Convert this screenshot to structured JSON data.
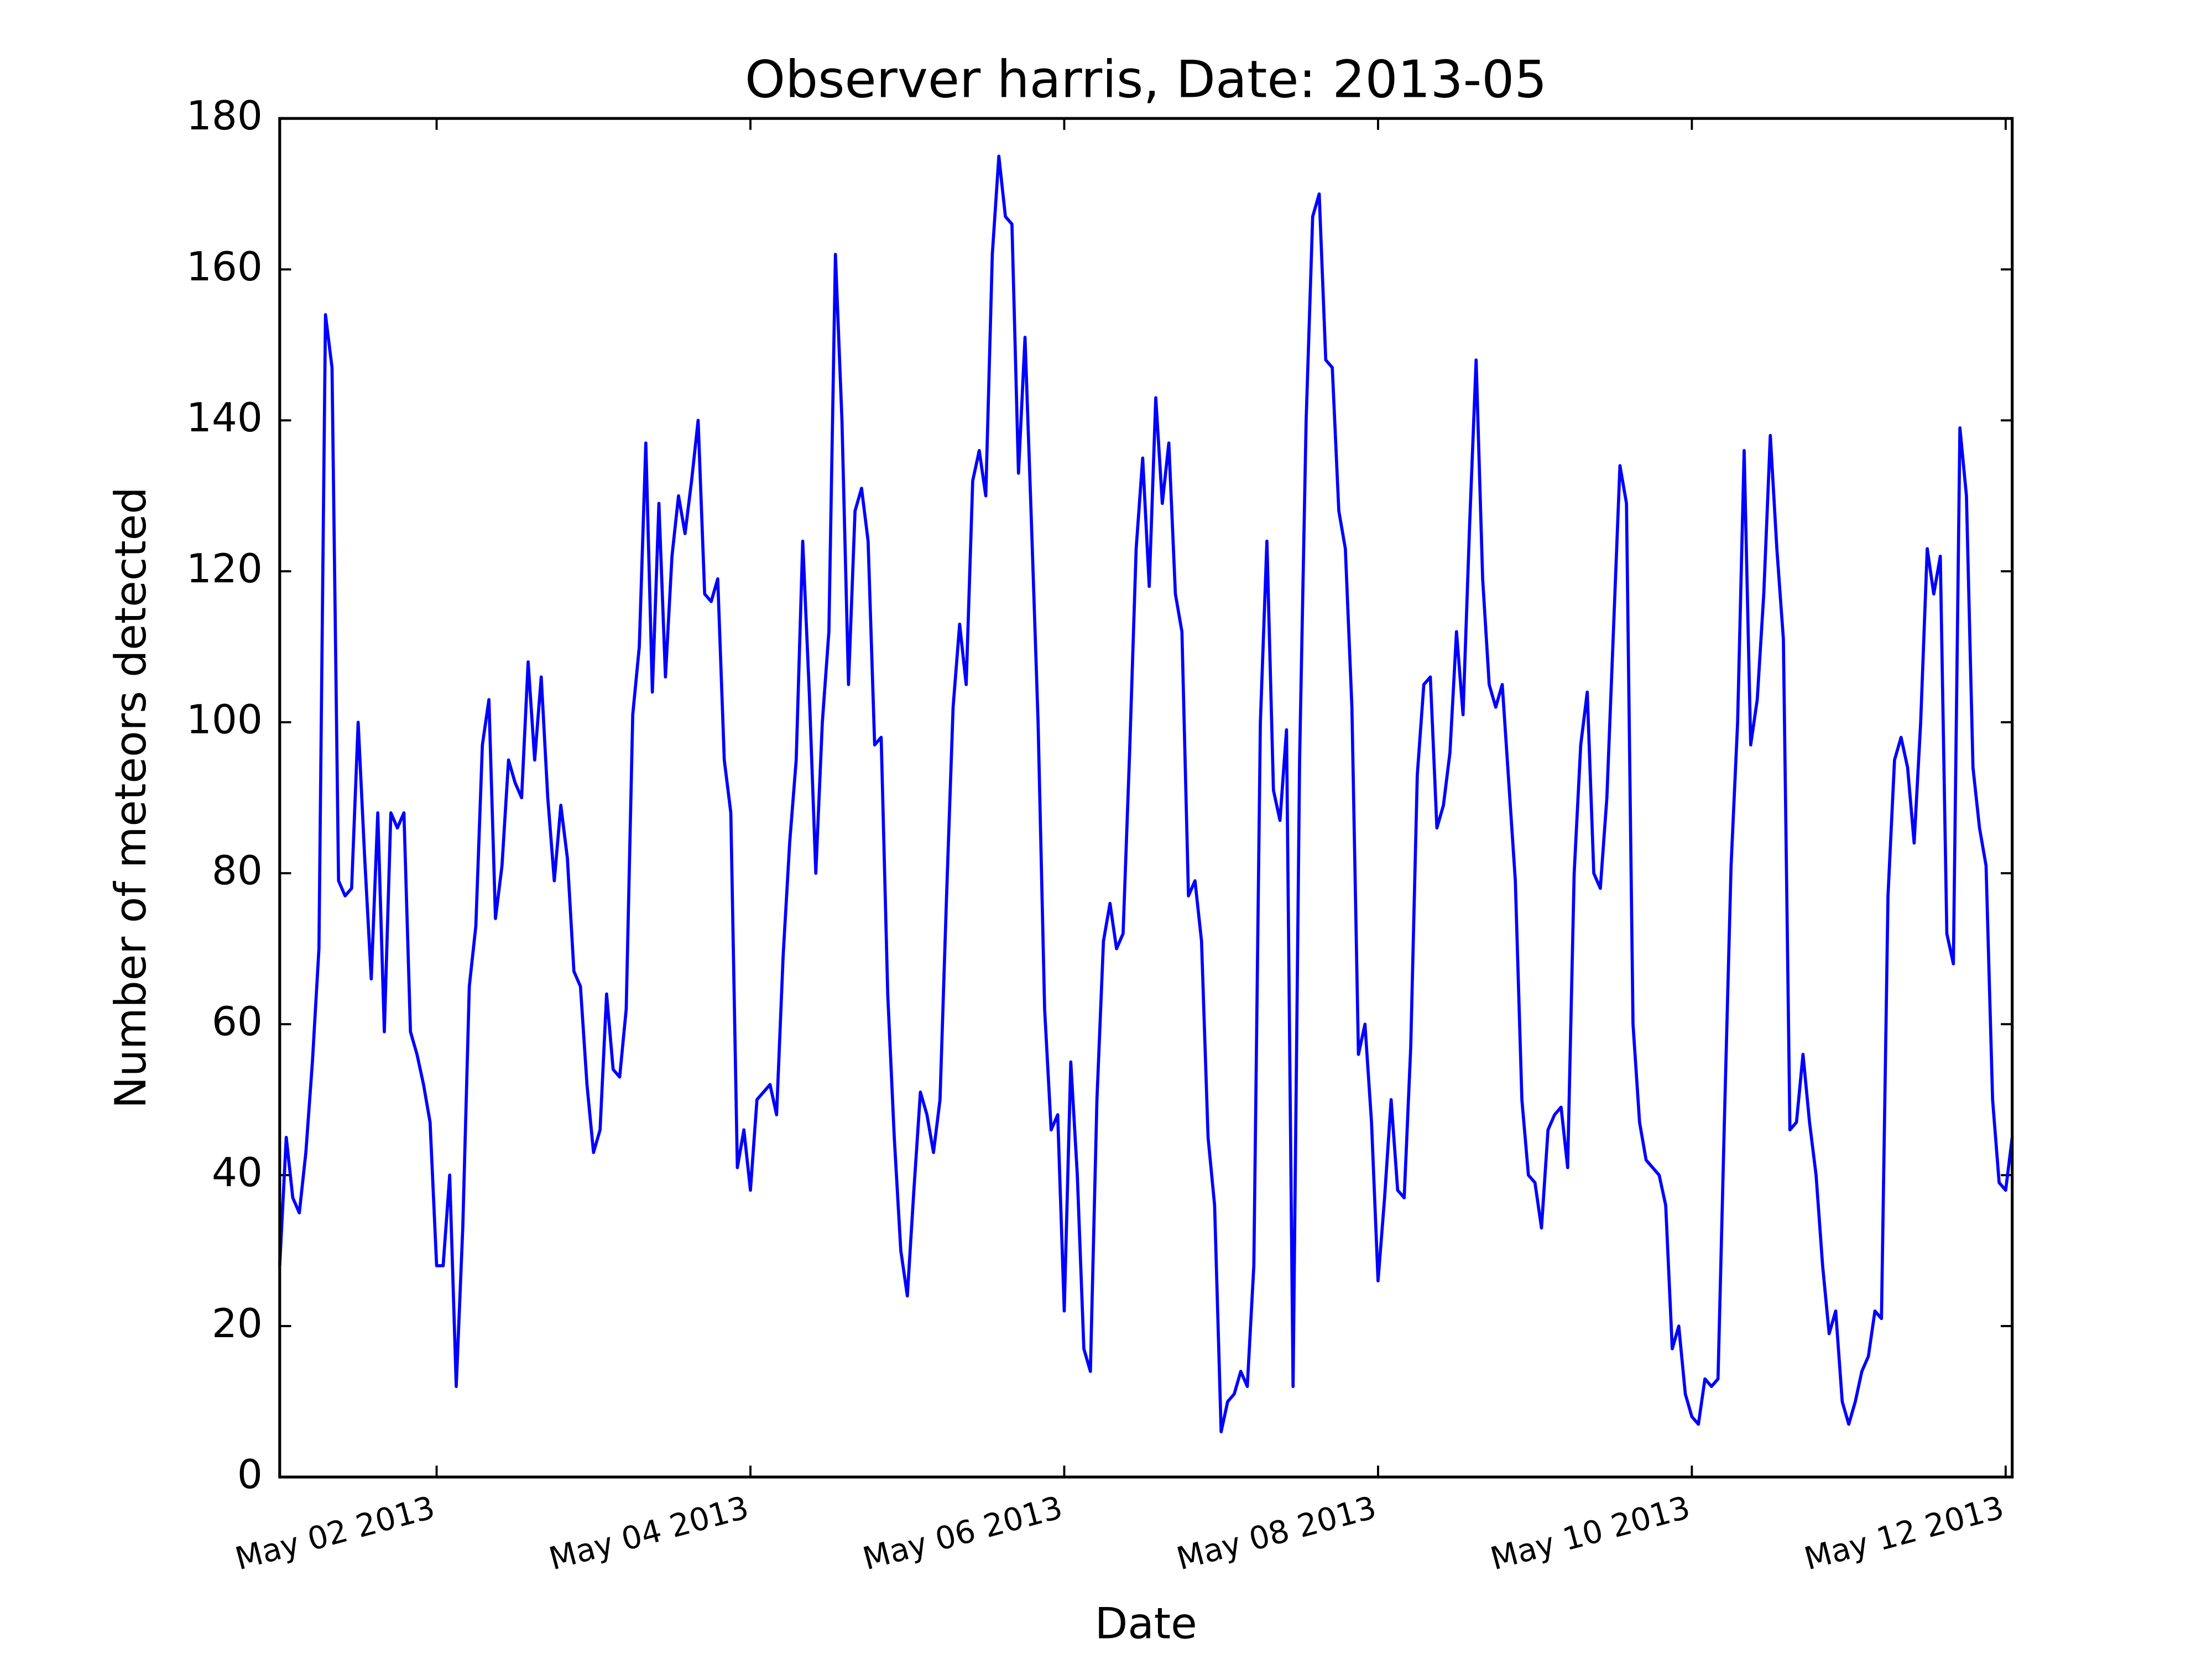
{
  "chart_data": {
    "type": "line",
    "title": "Observer harris, Date: 2013-05",
    "xlabel": "Date",
    "ylabel": "Number of meteors detected",
    "color": "#0000ff",
    "x": [
      "2013-05-01T00:00",
      "2013-05-01T01:00",
      "2013-05-01T02:00",
      "2013-05-01T03:00",
      "2013-05-01T04:00",
      "2013-05-01T05:00",
      "2013-05-01T06:00",
      "2013-05-01T07:00",
      "2013-05-01T08:00",
      "2013-05-01T09:00",
      "2013-05-01T10:00",
      "2013-05-01T11:00",
      "2013-05-01T12:00",
      "2013-05-01T13:00",
      "2013-05-01T14:00",
      "2013-05-01T15:00",
      "2013-05-01T16:00",
      "2013-05-01T17:00",
      "2013-05-01T18:00",
      "2013-05-01T19:00",
      "2013-05-01T20:00",
      "2013-05-01T21:00",
      "2013-05-01T22:00",
      "2013-05-01T23:00",
      "2013-05-02T00:00",
      "2013-05-02T01:00",
      "2013-05-02T02:00",
      "2013-05-02T03:00",
      "2013-05-02T04:00",
      "2013-05-02T05:00",
      "2013-05-02T06:00",
      "2013-05-02T07:00",
      "2013-05-02T08:00",
      "2013-05-02T09:00",
      "2013-05-02T10:00",
      "2013-05-02T11:00",
      "2013-05-02T12:00",
      "2013-05-02T13:00",
      "2013-05-02T14:00",
      "2013-05-02T15:00",
      "2013-05-02T16:00",
      "2013-05-02T17:00",
      "2013-05-02T18:00",
      "2013-05-02T19:00",
      "2013-05-02T20:00",
      "2013-05-02T21:00",
      "2013-05-02T22:00",
      "2013-05-02T23:00",
      "2013-05-03T00:00",
      "2013-05-03T01:00",
      "2013-05-03T02:00",
      "2013-05-03T03:00",
      "2013-05-03T04:00",
      "2013-05-03T05:00",
      "2013-05-03T06:00",
      "2013-05-03T07:00",
      "2013-05-03T08:00",
      "2013-05-03T09:00",
      "2013-05-03T10:00",
      "2013-05-03T11:00",
      "2013-05-03T12:00",
      "2013-05-03T13:00",
      "2013-05-03T14:00",
      "2013-05-03T15:00",
      "2013-05-03T16:00",
      "2013-05-03T17:00",
      "2013-05-03T18:00",
      "2013-05-03T19:00",
      "2013-05-03T20:00",
      "2013-05-03T21:00",
      "2013-05-03T22:00",
      "2013-05-03T23:00",
      "2013-05-04T00:00",
      "2013-05-04T01:00",
      "2013-05-04T02:00",
      "2013-05-04T03:00",
      "2013-05-04T04:00",
      "2013-05-04T05:00",
      "2013-05-04T06:00",
      "2013-05-04T07:00",
      "2013-05-04T08:00",
      "2013-05-04T09:00",
      "2013-05-04T10:00",
      "2013-05-04T11:00",
      "2013-05-04T12:00",
      "2013-05-04T13:00",
      "2013-05-04T14:00",
      "2013-05-04T15:00",
      "2013-05-04T16:00",
      "2013-05-04T17:00",
      "2013-05-04T18:00",
      "2013-05-04T19:00",
      "2013-05-04T20:00",
      "2013-05-04T21:00",
      "2013-05-04T22:00",
      "2013-05-04T23:00",
      "2013-05-05T00:00",
      "2013-05-05T01:00",
      "2013-05-05T02:00",
      "2013-05-05T03:00",
      "2013-05-05T04:00",
      "2013-05-05T05:00",
      "2013-05-05T06:00",
      "2013-05-05T07:00",
      "2013-05-05T08:00",
      "2013-05-05T09:00",
      "2013-05-05T10:00",
      "2013-05-05T11:00",
      "2013-05-05T12:00",
      "2013-05-05T13:00",
      "2013-05-05T14:00",
      "2013-05-05T15:00",
      "2013-05-05T16:00",
      "2013-05-05T17:00",
      "2013-05-05T18:00",
      "2013-05-05T19:00",
      "2013-05-05T20:00",
      "2013-05-05T21:00",
      "2013-05-05T22:00",
      "2013-05-05T23:00",
      "2013-05-06T00:00",
      "2013-05-06T01:00",
      "2013-05-06T02:00",
      "2013-05-06T03:00",
      "2013-05-06T04:00",
      "2013-05-06T05:00",
      "2013-05-06T06:00",
      "2013-05-06T07:00",
      "2013-05-06T08:00",
      "2013-05-06T09:00",
      "2013-05-06T10:00",
      "2013-05-06T11:00",
      "2013-05-06T12:00",
      "2013-05-06T13:00",
      "2013-05-06T14:00",
      "2013-05-06T15:00",
      "2013-05-06T16:00",
      "2013-05-06T17:00",
      "2013-05-06T18:00",
      "2013-05-06T19:00",
      "2013-05-06T20:00",
      "2013-05-06T21:00",
      "2013-05-06T22:00",
      "2013-05-06T23:00",
      "2013-05-07T00:00",
      "2013-05-07T01:00",
      "2013-05-07T02:00",
      "2013-05-07T03:00",
      "2013-05-07T04:00",
      "2013-05-07T05:00",
      "2013-05-07T06:00",
      "2013-05-07T07:00",
      "2013-05-07T08:00",
      "2013-05-07T09:00",
      "2013-05-07T10:00",
      "2013-05-07T11:00",
      "2013-05-07T12:00",
      "2013-05-07T13:00",
      "2013-05-07T14:00",
      "2013-05-07T15:00",
      "2013-05-07T16:00",
      "2013-05-07T17:00",
      "2013-05-07T18:00",
      "2013-05-07T19:00",
      "2013-05-07T20:00",
      "2013-05-07T21:00",
      "2013-05-07T22:00",
      "2013-05-07T23:00",
      "2013-05-08T00:00",
      "2013-05-08T01:00",
      "2013-05-08T02:00",
      "2013-05-08T03:00",
      "2013-05-08T04:00",
      "2013-05-08T05:00",
      "2013-05-08T06:00",
      "2013-05-08T07:00",
      "2013-05-08T08:00",
      "2013-05-08T09:00",
      "2013-05-08T10:00",
      "2013-05-08T11:00",
      "2013-05-08T12:00",
      "2013-05-08T13:00",
      "2013-05-08T14:00",
      "2013-05-08T15:00",
      "2013-05-08T16:00",
      "2013-05-08T17:00",
      "2013-05-08T18:00",
      "2013-05-08T19:00",
      "2013-05-08T20:00",
      "2013-05-08T21:00",
      "2013-05-08T22:00",
      "2013-05-08T23:00",
      "2013-05-09T00:00",
      "2013-05-09T01:00",
      "2013-05-09T02:00",
      "2013-05-09T03:00",
      "2013-05-09T04:00",
      "2013-05-09T05:00",
      "2013-05-09T06:00",
      "2013-05-09T07:00",
      "2013-05-09T08:00",
      "2013-05-09T09:00",
      "2013-05-09T10:00",
      "2013-05-09T11:00",
      "2013-05-09T12:00",
      "2013-05-09T13:00",
      "2013-05-09T14:00",
      "2013-05-09T15:00",
      "2013-05-09T16:00",
      "2013-05-09T17:00",
      "2013-05-09T18:00",
      "2013-05-09T19:00",
      "2013-05-09T20:00",
      "2013-05-09T21:00",
      "2013-05-09T22:00",
      "2013-05-09T23:00",
      "2013-05-10T00:00",
      "2013-05-10T01:00",
      "2013-05-10T02:00",
      "2013-05-10T03:00",
      "2013-05-10T04:00",
      "2013-05-10T05:00",
      "2013-05-10T06:00",
      "2013-05-10T07:00",
      "2013-05-10T08:00",
      "2013-05-10T09:00",
      "2013-05-10T10:00",
      "2013-05-10T11:00",
      "2013-05-10T12:00",
      "2013-05-10T13:00",
      "2013-05-10T14:00",
      "2013-05-10T15:00",
      "2013-05-10T16:00",
      "2013-05-10T17:00",
      "2013-05-10T18:00",
      "2013-05-10T19:00",
      "2013-05-10T20:00",
      "2013-05-10T21:00",
      "2013-05-10T22:00",
      "2013-05-10T23:00",
      "2013-05-11T00:00",
      "2013-05-11T01:00",
      "2013-05-11T02:00",
      "2013-05-11T03:00",
      "2013-05-11T04:00",
      "2013-05-11T05:00",
      "2013-05-11T06:00",
      "2013-05-11T07:00",
      "2013-05-11T08:00",
      "2013-05-11T09:00",
      "2013-05-11T10:00",
      "2013-05-11T11:00",
      "2013-05-11T12:00",
      "2013-05-11T13:00",
      "2013-05-11T14:00",
      "2013-05-11T15:00",
      "2013-05-11T16:00",
      "2013-05-11T17:00",
      "2013-05-11T18:00",
      "2013-05-11T19:00",
      "2013-05-11T20:00",
      "2013-05-11T21:00",
      "2013-05-11T22:00",
      "2013-05-11T23:00",
      "2013-05-12T00:00",
      "2013-05-12T01:00"
    ],
    "values": [
      28,
      45,
      37,
      35,
      43,
      55,
      70,
      154,
      147,
      79,
      77,
      78,
      100,
      82,
      66,
      88,
      59,
      88,
      86,
      88,
      59,
      56,
      52,
      47,
      28,
      28,
      40,
      12,
      33,
      65,
      73,
      97,
      103,
      74,
      81,
      95,
      92,
      90,
      108,
      95,
      106,
      90,
      79,
      89,
      82,
      67,
      65,
      52,
      43,
      46,
      64,
      54,
      53,
      62,
      101,
      110,
      137,
      104,
      129,
      106,
      122,
      130,
      125,
      132,
      140,
      117,
      116,
      119,
      95,
      88,
      41,
      46,
      38,
      50,
      51,
      52,
      48,
      69,
      84,
      95,
      124,
      104,
      80,
      100,
      112,
      162,
      140,
      105,
      128,
      131,
      124,
      97,
      98,
      64,
      45,
      30,
      24,
      38,
      51,
      48,
      43,
      50,
      77,
      102,
      113,
      105,
      132,
      136,
      130,
      162,
      175,
      167,
      166,
      133,
      151,
      126,
      100,
      62,
      46,
      48,
      22,
      55,
      40,
      17,
      14,
      50,
      71,
      76,
      70,
      72,
      96,
      123,
      135,
      118,
      143,
      129,
      137,
      117,
      112,
      77,
      79,
      71,
      45,
      36,
      6,
      10,
      11,
      14,
      12,
      28,
      100,
      124,
      91,
      87,
      99,
      12,
      95,
      140,
      167,
      170,
      148,
      147,
      128,
      123,
      102,
      56,
      60,
      47,
      26,
      37,
      50,
      38,
      37,
      57,
      93,
      105,
      106,
      86,
      89,
      96,
      112,
      101,
      126,
      148,
      119,
      105,
      102,
      105,
      92,
      79,
      50,
      40,
      39,
      33,
      46,
      48,
      49,
      41,
      80,
      97,
      104,
      80,
      78,
      90,
      112,
      134,
      129,
      60,
      47,
      42,
      41,
      40,
      36,
      17,
      20,
      11,
      8,
      7,
      13,
      12,
      13,
      48,
      81,
      100,
      136,
      97,
      103,
      117,
      138,
      123,
      111,
      46,
      47,
      56,
      47,
      40,
      28,
      19,
      22,
      10,
      7,
      10,
      14,
      16,
      22,
      21,
      77,
      95,
      98,
      94,
      84,
      100,
      123,
      117,
      122,
      72,
      68,
      139,
      130,
      94,
      86,
      81,
      50,
      39,
      38,
      45
    ],
    "xlim": [
      "2013-05-01T00:00",
      "2013-05-12T01:00"
    ],
    "xticks": [
      {
        "value": "2013-05-02T00:00",
        "label": "May 02 2013"
      },
      {
        "value": "2013-05-04T00:00",
        "label": "May 04 2013"
      },
      {
        "value": "2013-05-06T00:00",
        "label": "May 06 2013"
      },
      {
        "value": "2013-05-08T00:00",
        "label": "May 08 2013"
      },
      {
        "value": "2013-05-10T00:00",
        "label": "May 10 2013"
      },
      {
        "value": "2013-05-12T00:00",
        "label": "May 12 2013"
      }
    ],
    "ylim": [
      0,
      180
    ],
    "yticks": [
      0,
      20,
      40,
      60,
      80,
      100,
      120,
      140,
      160,
      180
    ],
    "grid": false
  }
}
